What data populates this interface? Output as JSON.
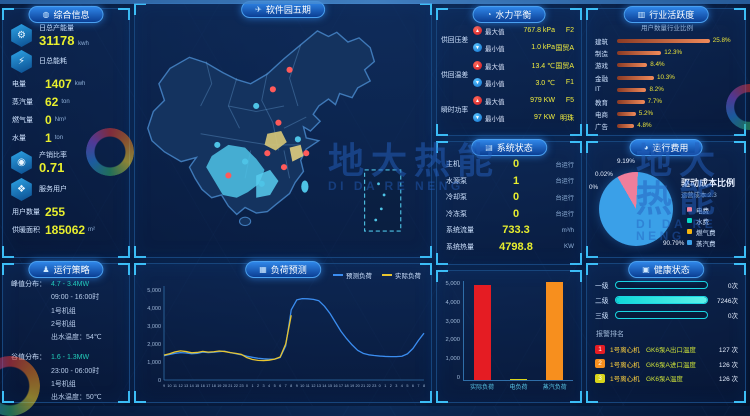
{
  "watermark": {
    "cn": "地大热能",
    "en": "DI DA RE NENG"
  },
  "panels": {
    "overview": {
      "title": "综合信息",
      "groups": [
        {
          "icon": "gear-icon",
          "glyph": "gear",
          "label": "日总产能量",
          "value": "31178",
          "unit": "kwh"
        },
        {
          "icon": "bolt-icon",
          "glyph": "bolt",
          "label": "日总能耗",
          "value": "",
          "unit": ""
        }
      ],
      "stats": [
        {
          "label": "电量",
          "value": "1407",
          "unit": "kwh"
        },
        {
          "label": "蒸汽量",
          "value": "62",
          "unit": "ton"
        },
        {
          "label": "燃气量",
          "value": "0",
          "unit": "Nm³"
        },
        {
          "label": "水量",
          "value": "1",
          "unit": "ton"
        }
      ],
      "ratio": {
        "icon": "ratio-icon",
        "glyph": "ratio",
        "label": "产销比率",
        "value": "0.71",
        "unit": ""
      },
      "service": {
        "icon": "users-icon",
        "glyph": "users",
        "label": "服务用户"
      },
      "service_stats": [
        {
          "label": "用户数量",
          "value": "255",
          "unit": ""
        },
        {
          "label": "供暖面积",
          "value": "185062",
          "unit": "m²"
        }
      ]
    },
    "strategy": {
      "title": "运行策略",
      "blocks": [
        {
          "label": "峰值分布：",
          "range": "4.7 - 3.4MW",
          "lines": [
            "09:00 - 16:00时",
            "1号机组",
            "2号机组",
            "出水温度：54℃"
          ]
        },
        {
          "label": "谷值分布：",
          "range": "1.6 - 1.3MW",
          "lines": [
            "23:00 - 06:00时",
            "1号机组",
            "出水温度：50℃"
          ]
        }
      ]
    },
    "map": {
      "title": "软件园五期",
      "markers": [
        {
          "x": 52,
          "y": 17,
          "c": "#ff5a5a"
        },
        {
          "x": 46,
          "y": 24,
          "c": "#ff5a5a"
        },
        {
          "x": 40,
          "y": 30,
          "c": "#4ec3e6"
        },
        {
          "x": 48,
          "y": 36,
          "c": "#ff5a5a"
        },
        {
          "x": 55,
          "y": 42,
          "c": "#4ec3e6"
        },
        {
          "x": 44,
          "y": 47,
          "c": "#ff5a5a"
        },
        {
          "x": 36,
          "y": 50,
          "c": "#4ec3e6"
        },
        {
          "x": 30,
          "y": 55,
          "c": "#ff5a5a"
        },
        {
          "x": 42,
          "y": 58,
          "c": "#4ec3e6"
        },
        {
          "x": 50,
          "y": 52,
          "c": "#ff5a5a"
        },
        {
          "x": 26,
          "y": 44,
          "c": "#4ec3e6"
        },
        {
          "x": 58,
          "y": 47,
          "c": "#ff5a5a"
        }
      ]
    },
    "hydraulic": {
      "title": "水力平衡",
      "max_label": "最大值",
      "min_label": "最小值",
      "groups": [
        {
          "label": "供回压差",
          "rows": [
            {
              "type": "max",
              "value": "767.8 kPa",
              "site": "F2"
            },
            {
              "type": "min",
              "value": "1.0 kPa",
              "site": "国贸A"
            }
          ]
        },
        {
          "label": "供回温差",
          "rows": [
            {
              "type": "max",
              "value": "13.4 ℃",
              "site": "国贸A"
            },
            {
              "type": "min",
              "value": "3.0 ℃",
              "site": "F1"
            }
          ]
        },
        {
          "label": "瞬时功率",
          "rows": [
            {
              "type": "max",
              "value": "979 KW",
              "site": "F5"
            },
            {
              "type": "min",
              "value": "97 KW",
              "site": "明珠"
            }
          ]
        }
      ]
    },
    "industry": {
      "title": "行业活跃度",
      "subtitle": "用户数量行业比例",
      "chart": {
        "type": "bar",
        "categories": [
          "建筑",
          "制造",
          "游戏",
          "金融",
          "IT",
          "教育",
          "电商",
          "广告"
        ],
        "values": [
          25.8,
          12.3,
          8.4,
          10.3,
          8.2,
          7.7,
          5.2,
          4.8
        ],
        "unit": "%",
        "bar_color": "#f08a5a",
        "label_color": "#e8e23a"
      }
    },
    "system": {
      "title": "系统状态",
      "rows": [
        {
          "label": "主机",
          "value": "0",
          "status": "台运行"
        },
        {
          "label": "水源泵",
          "value": "1",
          "status": "台运行"
        },
        {
          "label": "冷却泵",
          "value": "0",
          "status": "台运行"
        },
        {
          "label": "冷冻泵",
          "value": "0",
          "status": "台运行"
        },
        {
          "label": "系统流量",
          "value": "733.3",
          "status": "m³/h"
        },
        {
          "label": "系统热量",
          "value": "4798.8",
          "status": "KW"
        }
      ]
    },
    "loadbars": {
      "chart": {
        "type": "bar",
        "categories": [
          "实际负荷",
          "电负荷",
          "蒸汽负荷"
        ],
        "values": [
          4800,
          60,
          4950
        ],
        "colors": [
          "#e51c23",
          "#d8d41a",
          "#f78f1e"
        ],
        "ylim": [
          0,
          5000
        ],
        "yticks": [
          "5,000",
          "4,000",
          "3,000",
          "2,000",
          "1,000",
          "0"
        ]
      }
    },
    "cost": {
      "title": "运行费用",
      "chart_title": "驱动成本比例",
      "chart_subtitle": "运营成本:2.3",
      "chart": {
        "type": "pie",
        "slices": [
          {
            "label": "电费",
            "value": 9.19,
            "color": "#ef7e9b"
          },
          {
            "label": "水费",
            "value": 0.02,
            "color": "#08d8c6"
          },
          {
            "label": "燃气费",
            "value": 0,
            "color": "#f6b50e"
          },
          {
            "label": "蒸汽费",
            "value": 90.79,
            "color": "#3aa0e8"
          }
        ],
        "labels": [
          "9.19%",
          "0.02%",
          "0%",
          "90.79%"
        ]
      }
    },
    "forecast": {
      "title": "负荷预测",
      "chart": {
        "type": "line",
        "ylim": [
          0,
          5000
        ],
        "yticks": [
          "5,000",
          "4,000",
          "3,000",
          "2,000",
          "1,000",
          "0"
        ],
        "x": [
          "9",
          "10",
          "11",
          "12",
          "13",
          "14",
          "15",
          "16",
          "17",
          "18",
          "19",
          "20",
          "21",
          "22",
          "23",
          "0",
          "1",
          "2",
          "3",
          "4",
          "5",
          "6",
          "7",
          "8",
          "9",
          "10",
          "11",
          "12",
          "13",
          "14",
          "15",
          "16",
          "17",
          "18",
          "19",
          "20",
          "21",
          "22",
          "23",
          "0",
          "1",
          "2",
          "3",
          "4",
          "5",
          "6",
          "7",
          "8"
        ],
        "series": [
          {
            "name": "预测负荷",
            "color": "#3b8df0",
            "values": [
              1350,
              1420,
              1480,
              1520,
              1500,
              1460,
              1480,
              1550,
              1520,
              1540,
              1580,
              1600,
              1520,
              1460,
              1400,
              1320,
              1260,
              1210,
              1180,
              1160,
              1160,
              1250,
              1900,
              3900,
              4450,
              4520,
              4510,
              4480,
              4400,
              4100,
              3700,
              3200,
              2700,
              2300,
              1950,
              1650,
              1480,
              1400,
              1360,
              1330,
              1310,
              1300,
              1300,
              1320,
              1450,
              1750,
              2200,
              2600
            ]
          },
          {
            "name": "实际负荷",
            "color": "#e8c52f",
            "values": [
              1380,
              1460,
              1560,
              1620,
              1580,
              1510,
              1530,
              1590,
              1550,
              1570,
              1610,
              1580,
              1520,
              1480,
              1420,
              1240,
              1140,
              1090,
              1080,
              1100,
              1160,
              1280,
              2000,
              3600
            ]
          }
        ]
      }
    },
    "health": {
      "title": "健康状态",
      "levels": [
        {
          "label": "一级",
          "value": "0次",
          "pct": 0
        },
        {
          "label": "二级",
          "value": "7246次",
          "pct": 100
        },
        {
          "label": "三级",
          "value": "0次",
          "pct": 0
        }
      ],
      "ranking_title": "报警排名",
      "alarms": [
        {
          "rank": "1",
          "color": "#e51c23",
          "name": "1号离心机",
          "desc": "GK6泵A出口温度",
          "count": "127 次"
        },
        {
          "rank": "2",
          "color": "#f78f1e",
          "name": "1号离心机",
          "desc": "GK6泵A进口温度",
          "count": "126 次"
        },
        {
          "rank": "3",
          "color": "#d8d41a",
          "name": "1号离心机",
          "desc": "GK6泵A温度",
          "count": "126 次"
        }
      ]
    }
  }
}
